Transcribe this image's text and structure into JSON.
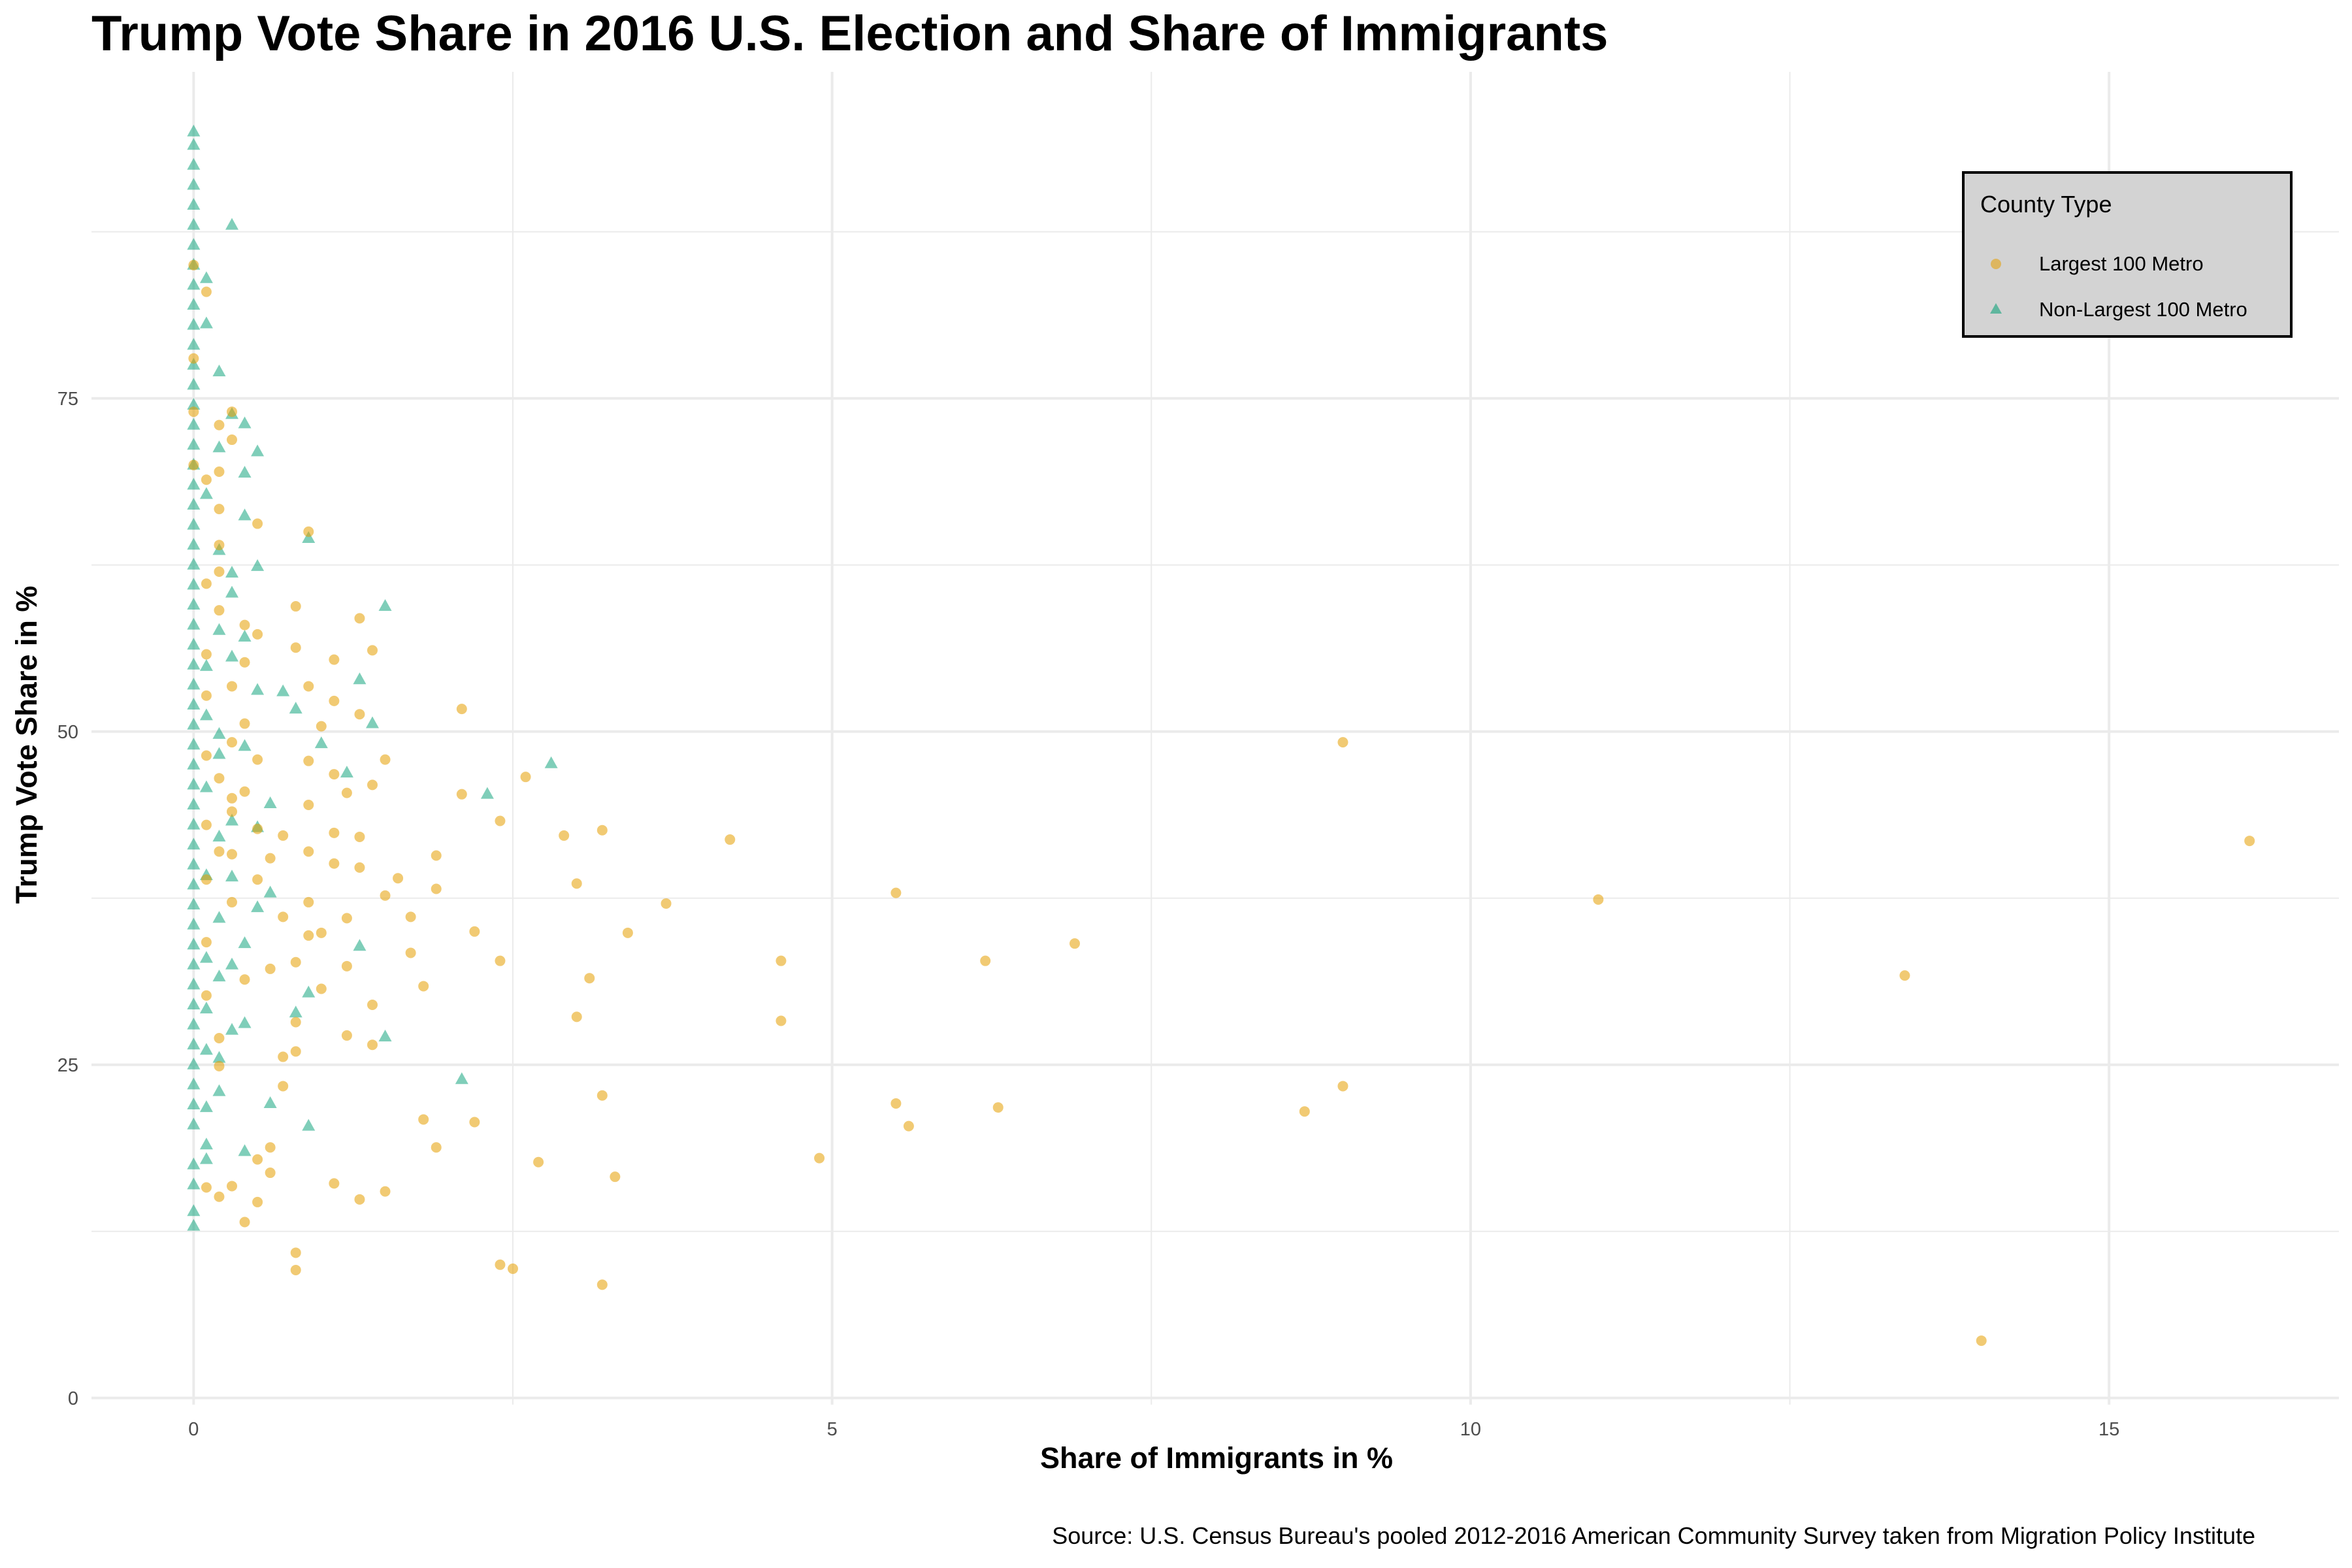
{
  "chart_data": {
    "type": "scatter",
    "title": "Trump Vote Share in 2016 U.S. Election and Share of Immigrants",
    "xlabel": "Share of Immigrants in %",
    "ylabel": "Trump Vote Share in %",
    "caption": "Source: U.S. Census Bureau's pooled 2012-2016 American Community Survey taken from Migration Policy Institute",
    "xlim": [
      -0.8,
      16.8
    ],
    "ylim": [
      -0.5,
      99.5
    ],
    "x_ticks": [
      0,
      5,
      10,
      15
    ],
    "y_ticks": [
      0,
      25,
      50,
      75
    ],
    "grid": true,
    "legend": {
      "title": "County Type",
      "position": "top-right",
      "entries": [
        "Largest 100 Metro",
        "Non-Largest 100 Metro"
      ]
    },
    "series": [
      {
        "name": "Largest 100 Metro",
        "color": "#E69F00",
        "marker": "circle",
        "points": [
          [
            9.0,
            49.2
          ],
          [
            16.1,
            41.8
          ],
          [
            11.0,
            37.4
          ],
          [
            13.4,
            31.7
          ],
          [
            14.0,
            4.3
          ],
          [
            9.0,
            23.4
          ],
          [
            8.7,
            21.5
          ],
          [
            5.5,
            37.9
          ],
          [
            6.2,
            32.8
          ],
          [
            6.9,
            34.1
          ],
          [
            5.5,
            22.1
          ],
          [
            5.6,
            20.4
          ],
          [
            6.3,
            21.8
          ],
          [
            4.9,
            18.0
          ],
          [
            4.6,
            32.8
          ],
          [
            4.6,
            28.3
          ],
          [
            4.2,
            41.9
          ],
          [
            3.7,
            37.1
          ],
          [
            3.4,
            34.9
          ],
          [
            3.2,
            42.6
          ],
          [
            2.9,
            42.2
          ],
          [
            3.0,
            38.6
          ],
          [
            3.0,
            28.6
          ],
          [
            3.1,
            31.5
          ],
          [
            3.2,
            22.7
          ],
          [
            3.3,
            16.6
          ],
          [
            3.2,
            8.5
          ],
          [
            2.6,
            46.6
          ],
          [
            2.4,
            43.3
          ],
          [
            2.1,
            51.7
          ],
          [
            2.1,
            45.3
          ],
          [
            2.2,
            35.0
          ],
          [
            2.4,
            32.8
          ],
          [
            2.2,
            20.7
          ],
          [
            1.9,
            40.7
          ],
          [
            1.9,
            38.2
          ],
          [
            1.8,
            30.9
          ],
          [
            1.9,
            18.8
          ],
          [
            1.8,
            20.9
          ],
          [
            2.7,
            17.7
          ],
          [
            2.4,
            10.0
          ],
          [
            2.5,
            9.7
          ],
          [
            1.6,
            39.0
          ],
          [
            1.7,
            36.1
          ],
          [
            1.7,
            33.4
          ],
          [
            1.5,
            47.9
          ],
          [
            1.5,
            37.7
          ],
          [
            1.4,
            56.1
          ],
          [
            1.4,
            46.0
          ],
          [
            1.3,
            58.5
          ],
          [
            1.3,
            51.3
          ],
          [
            1.2,
            45.4
          ],
          [
            1.3,
            42.1
          ],
          [
            1.3,
            39.8
          ],
          [
            1.4,
            29.5
          ],
          [
            1.4,
            26.5
          ],
          [
            1.5,
            15.5
          ],
          [
            1.2,
            36.0
          ],
          [
            1.2,
            32.4
          ],
          [
            1.2,
            27.2
          ],
          [
            1.3,
            14.9
          ],
          [
            1.1,
            55.4
          ],
          [
            1.1,
            52.3
          ],
          [
            1.0,
            50.4
          ],
          [
            1.1,
            46.8
          ],
          [
            1.1,
            42.4
          ],
          [
            1.1,
            40.1
          ],
          [
            1.0,
            34.9
          ],
          [
            1.0,
            30.7
          ],
          [
            1.1,
            16.1
          ],
          [
            0.9,
            65.0
          ],
          [
            0.9,
            53.4
          ],
          [
            0.8,
            56.3
          ],
          [
            0.8,
            59.4
          ],
          [
            0.9,
            47.8
          ],
          [
            0.9,
            44.5
          ],
          [
            0.9,
            41.0
          ],
          [
            0.9,
            37.2
          ],
          [
            0.9,
            34.7
          ],
          [
            0.8,
            32.7
          ],
          [
            0.8,
            28.2
          ],
          [
            0.8,
            26.0
          ],
          [
            0.8,
            10.9
          ],
          [
            0.8,
            9.6
          ],
          [
            0.7,
            25.6
          ],
          [
            0.7,
            23.4
          ],
          [
            0.6,
            18.8
          ],
          [
            0.6,
            16.9
          ],
          [
            0.5,
            17.9
          ],
          [
            0.5,
            14.7
          ],
          [
            0.4,
            13.2
          ],
          [
            0.3,
            15.9
          ],
          [
            0.2,
            15.1
          ],
          [
            0.1,
            15.8
          ],
          [
            0.7,
            42.2
          ],
          [
            0.7,
            36.1
          ],
          [
            0.6,
            40.5
          ],
          [
            0.6,
            32.2
          ],
          [
            0.5,
            42.7
          ],
          [
            0.5,
            38.9
          ],
          [
            0.4,
            31.4
          ],
          [
            0.3,
            44.0
          ],
          [
            0.3,
            37.2
          ],
          [
            0.2,
            27.0
          ],
          [
            0.2,
            24.9
          ],
          [
            0.5,
            47.9
          ],
          [
            0.4,
            50.6
          ],
          [
            0.5,
            57.3
          ],
          [
            0.4,
            55.2
          ],
          [
            0.3,
            53.4
          ],
          [
            0.5,
            65.6
          ],
          [
            0.3,
            71.9
          ],
          [
            0.3,
            74.0
          ],
          [
            0.2,
            64.0
          ],
          [
            0.2,
            59.1
          ],
          [
            0.1,
            52.7
          ],
          [
            0.1,
            48.2
          ],
          [
            0.1,
            43.0
          ],
          [
            0.1,
            38.9
          ],
          [
            0.1,
            34.2
          ],
          [
            0.1,
            30.2
          ],
          [
            0.2,
            66.7
          ],
          [
            0.1,
            68.9
          ],
          [
            0.1,
            61.1
          ],
          [
            0.1,
            55.8
          ],
          [
            0.2,
            69.5
          ],
          [
            0.2,
            46.5
          ],
          [
            0.3,
            49.2
          ],
          [
            0.3,
            40.8
          ],
          [
            0.4,
            58.0
          ],
          [
            0.2,
            73.0
          ],
          [
            0.2,
            62.0
          ],
          [
            0.4,
            45.5
          ],
          [
            0.3,
            45.0
          ],
          [
            0.2,
            41.0
          ],
          [
            0.0,
            74.0
          ],
          [
            0.0,
            70.0
          ],
          [
            0.0,
            85.0
          ],
          [
            0.1,
            83.0
          ],
          [
            0.0,
            78.0
          ]
        ]
      },
      {
        "name": "Non-Largest 100 Metro",
        "color": "#009E73",
        "marker": "triangle",
        "points": [
          [
            0.0,
            95.0
          ],
          [
            0.0,
            94.0
          ],
          [
            0.0,
            92.5
          ],
          [
            0.0,
            91.0
          ],
          [
            0.0,
            89.5
          ],
          [
            0.0,
            88.0
          ],
          [
            0.0,
            86.5
          ],
          [
            0.0,
            85.0
          ],
          [
            0.0,
            83.5
          ],
          [
            0.0,
            82.0
          ],
          [
            0.0,
            80.5
          ],
          [
            0.0,
            79.0
          ],
          [
            0.0,
            77.5
          ],
          [
            0.0,
            76.0
          ],
          [
            0.0,
            74.5
          ],
          [
            0.0,
            73.0
          ],
          [
            0.0,
            71.5
          ],
          [
            0.0,
            70.0
          ],
          [
            0.0,
            68.5
          ],
          [
            0.0,
            67.0
          ],
          [
            0.0,
            65.5
          ],
          [
            0.0,
            64.0
          ],
          [
            0.0,
            62.5
          ],
          [
            0.0,
            61.0
          ],
          [
            0.0,
            59.5
          ],
          [
            0.0,
            58.0
          ],
          [
            0.0,
            56.5
          ],
          [
            0.0,
            55.0
          ],
          [
            0.0,
            53.5
          ],
          [
            0.0,
            52.0
          ],
          [
            0.0,
            50.5
          ],
          [
            0.0,
            49.0
          ],
          [
            0.0,
            47.5
          ],
          [
            0.0,
            46.0
          ],
          [
            0.0,
            44.5
          ],
          [
            0.0,
            43.0
          ],
          [
            0.0,
            41.5
          ],
          [
            0.0,
            40.0
          ],
          [
            0.0,
            38.5
          ],
          [
            0.0,
            37.0
          ],
          [
            0.0,
            35.5
          ],
          [
            0.0,
            34.0
          ],
          [
            0.0,
            32.5
          ],
          [
            0.0,
            31.0
          ],
          [
            0.0,
            29.5
          ],
          [
            0.0,
            28.0
          ],
          [
            0.0,
            26.5
          ],
          [
            0.0,
            25.0
          ],
          [
            0.0,
            23.5
          ],
          [
            0.0,
            22.0
          ],
          [
            0.0,
            20.5
          ],
          [
            0.0,
            17.5
          ],
          [
            0.0,
            16.0
          ],
          [
            0.0,
            14.0
          ],
          [
            0.0,
            12.9
          ],
          [
            0.3,
            88.0
          ],
          [
            0.9,
            64.5
          ],
          [
            1.5,
            59.4
          ],
          [
            2.8,
            47.6
          ],
          [
            2.3,
            45.3
          ],
          [
            1.4,
            50.6
          ],
          [
            1.3,
            53.9
          ],
          [
            1.2,
            46.9
          ],
          [
            1.0,
            49.1
          ],
          [
            1.3,
            33.9
          ],
          [
            1.5,
            27.1
          ],
          [
            2.1,
            23.9
          ],
          [
            0.9,
            20.4
          ],
          [
            0.9,
            30.4
          ],
          [
            0.8,
            28.9
          ],
          [
            0.6,
            22.1
          ],
          [
            0.4,
            18.5
          ],
          [
            0.5,
            71.0
          ],
          [
            0.4,
            73.1
          ],
          [
            0.3,
            73.8
          ],
          [
            0.4,
            66.2
          ],
          [
            0.4,
            69.4
          ],
          [
            0.3,
            61.9
          ],
          [
            0.5,
            62.4
          ],
          [
            0.4,
            57.1
          ],
          [
            0.5,
            53.1
          ],
          [
            0.7,
            53.0
          ],
          [
            0.8,
            51.7
          ],
          [
            0.6,
            44.6
          ],
          [
            0.4,
            48.9
          ],
          [
            0.5,
            42.8
          ],
          [
            0.5,
            36.8
          ],
          [
            0.6,
            37.9
          ],
          [
            0.3,
            39.1
          ],
          [
            0.4,
            34.1
          ],
          [
            0.2,
            31.6
          ],
          [
            0.3,
            27.6
          ],
          [
            0.4,
            28.1
          ],
          [
            0.2,
            23.0
          ],
          [
            0.2,
            25.5
          ],
          [
            0.1,
            17.9
          ],
          [
            0.1,
            19.0
          ],
          [
            0.1,
            84.0
          ],
          [
            0.1,
            80.6
          ],
          [
            0.2,
            77.0
          ],
          [
            0.2,
            71.3
          ],
          [
            0.1,
            67.8
          ],
          [
            0.2,
            63.6
          ],
          [
            0.2,
            57.6
          ],
          [
            0.1,
            54.9
          ],
          [
            0.1,
            51.2
          ],
          [
            0.2,
            49.8
          ],
          [
            0.1,
            45.8
          ],
          [
            0.2,
            42.1
          ],
          [
            0.1,
            39.2
          ],
          [
            0.2,
            36.0
          ],
          [
            0.1,
            33.0
          ],
          [
            0.1,
            29.2
          ],
          [
            0.1,
            26.1
          ],
          [
            0.1,
            21.8
          ],
          [
            0.3,
            60.4
          ],
          [
            0.3,
            55.6
          ],
          [
            0.3,
            43.3
          ],
          [
            0.2,
            48.3
          ],
          [
            0.3,
            32.5
          ]
        ]
      }
    ]
  }
}
